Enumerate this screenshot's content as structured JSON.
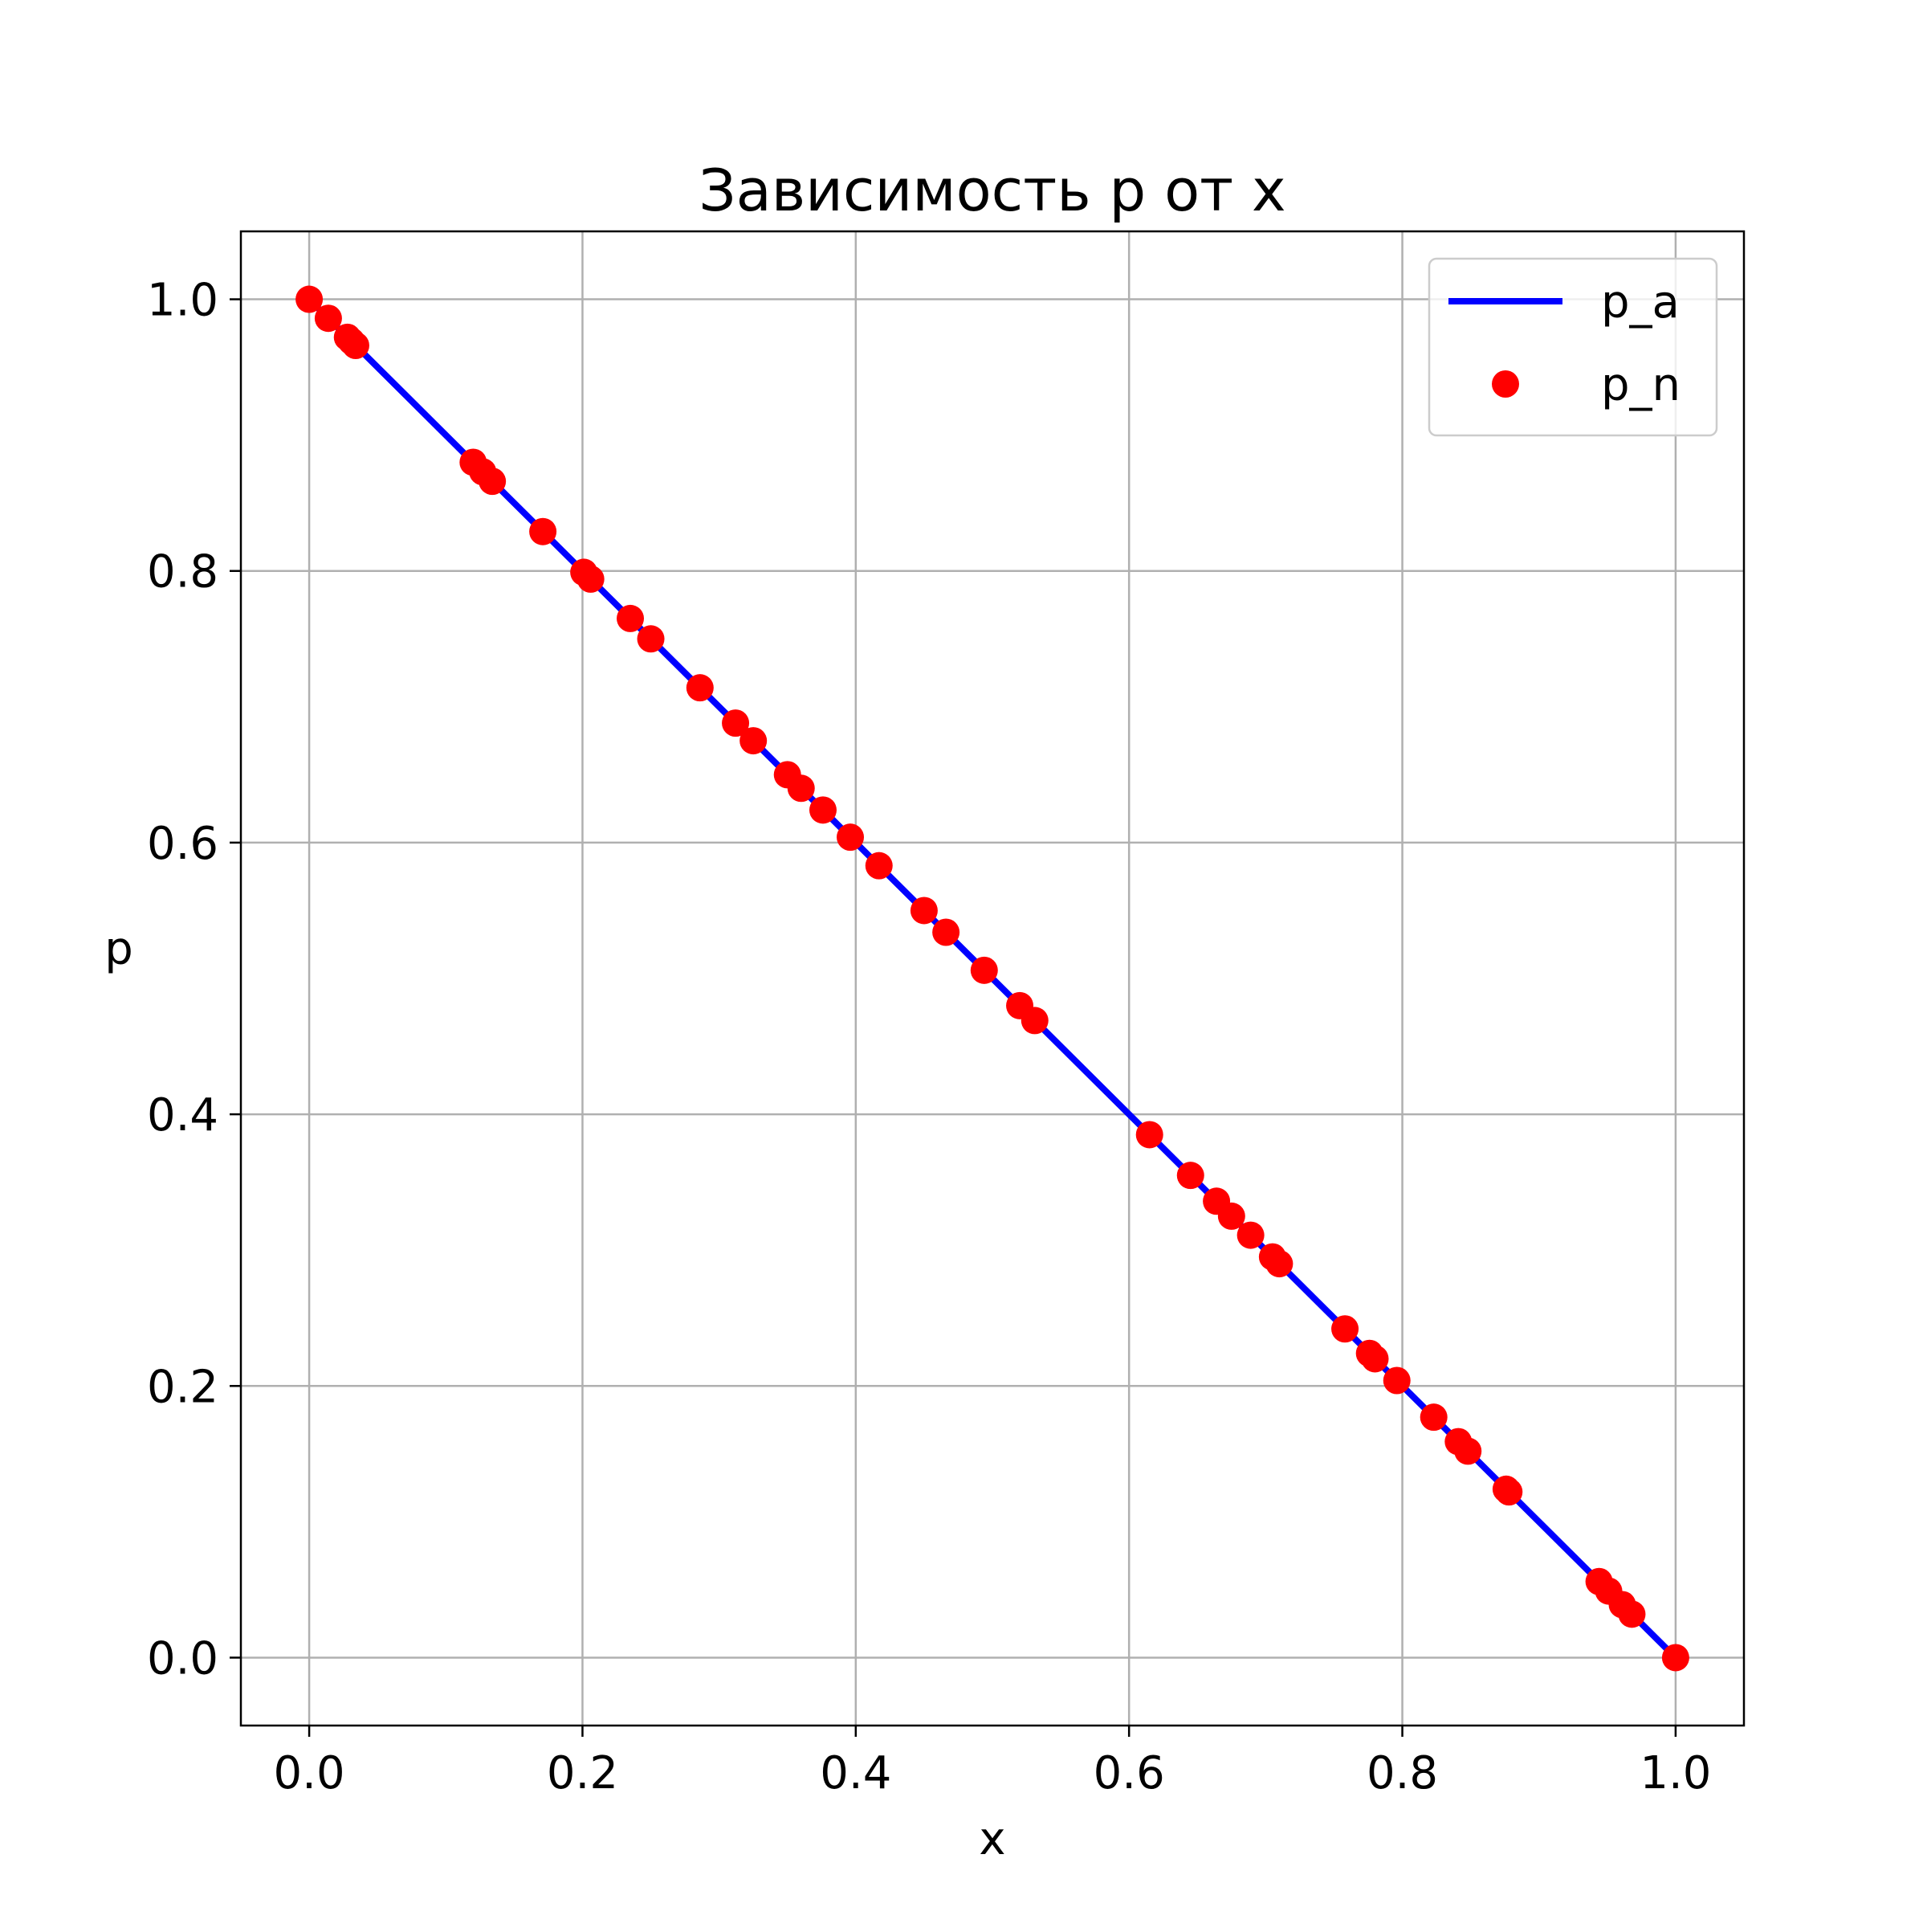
{
  "chart_data": {
    "type": "line",
    "title": "Зависимость p от x",
    "xlabel": "x",
    "ylabel": "p",
    "xlim": [
      -0.05,
      1.05
    ],
    "ylim": [
      -0.05,
      1.05
    ],
    "xticks": [
      "0.0",
      "0.2",
      "0.4",
      "0.6",
      "0.8",
      "1.0"
    ],
    "yticks": [
      "0.0",
      "0.2",
      "0.4",
      "0.6",
      "0.8",
      "1.0"
    ],
    "grid": true,
    "legend_position": "top-right",
    "series": [
      {
        "name": "p_a",
        "style": "line",
        "color": "#0000ff",
        "x": [
          0.0,
          1.0
        ],
        "y": [
          1.0,
          0.0
        ]
      },
      {
        "name": "p_n",
        "style": "markers",
        "color": "#ff0000",
        "x": [
          0.0,
          0.014,
          0.028,
          0.031,
          0.034,
          0.12,
          0.127,
          0.134,
          0.171,
          0.201,
          0.206,
          0.235,
          0.25,
          0.286,
          0.312,
          0.325,
          0.35,
          0.36,
          0.376,
          0.396,
          0.417,
          0.45,
          0.466,
          0.494,
          0.52,
          0.531,
          0.615,
          0.645,
          0.664,
          0.675,
          0.689,
          0.705,
          0.71,
          0.758,
          0.776,
          0.78,
          0.796,
          0.823,
          0.841,
          0.848,
          0.876,
          0.878,
          0.944,
          0.951,
          0.961,
          0.968,
          1.0
        ],
        "y": [
          1.0,
          0.986,
          0.972,
          0.969,
          0.966,
          0.88,
          0.873,
          0.866,
          0.829,
          0.799,
          0.794,
          0.765,
          0.75,
          0.714,
          0.688,
          0.675,
          0.65,
          0.64,
          0.624,
          0.604,
          0.583,
          0.55,
          0.534,
          0.506,
          0.48,
          0.469,
          0.385,
          0.355,
          0.336,
          0.325,
          0.311,
          0.295,
          0.29,
          0.242,
          0.224,
          0.22,
          0.204,
          0.177,
          0.159,
          0.152,
          0.124,
          0.122,
          0.056,
          0.049,
          0.039,
          0.032,
          0.0
        ]
      }
    ]
  }
}
